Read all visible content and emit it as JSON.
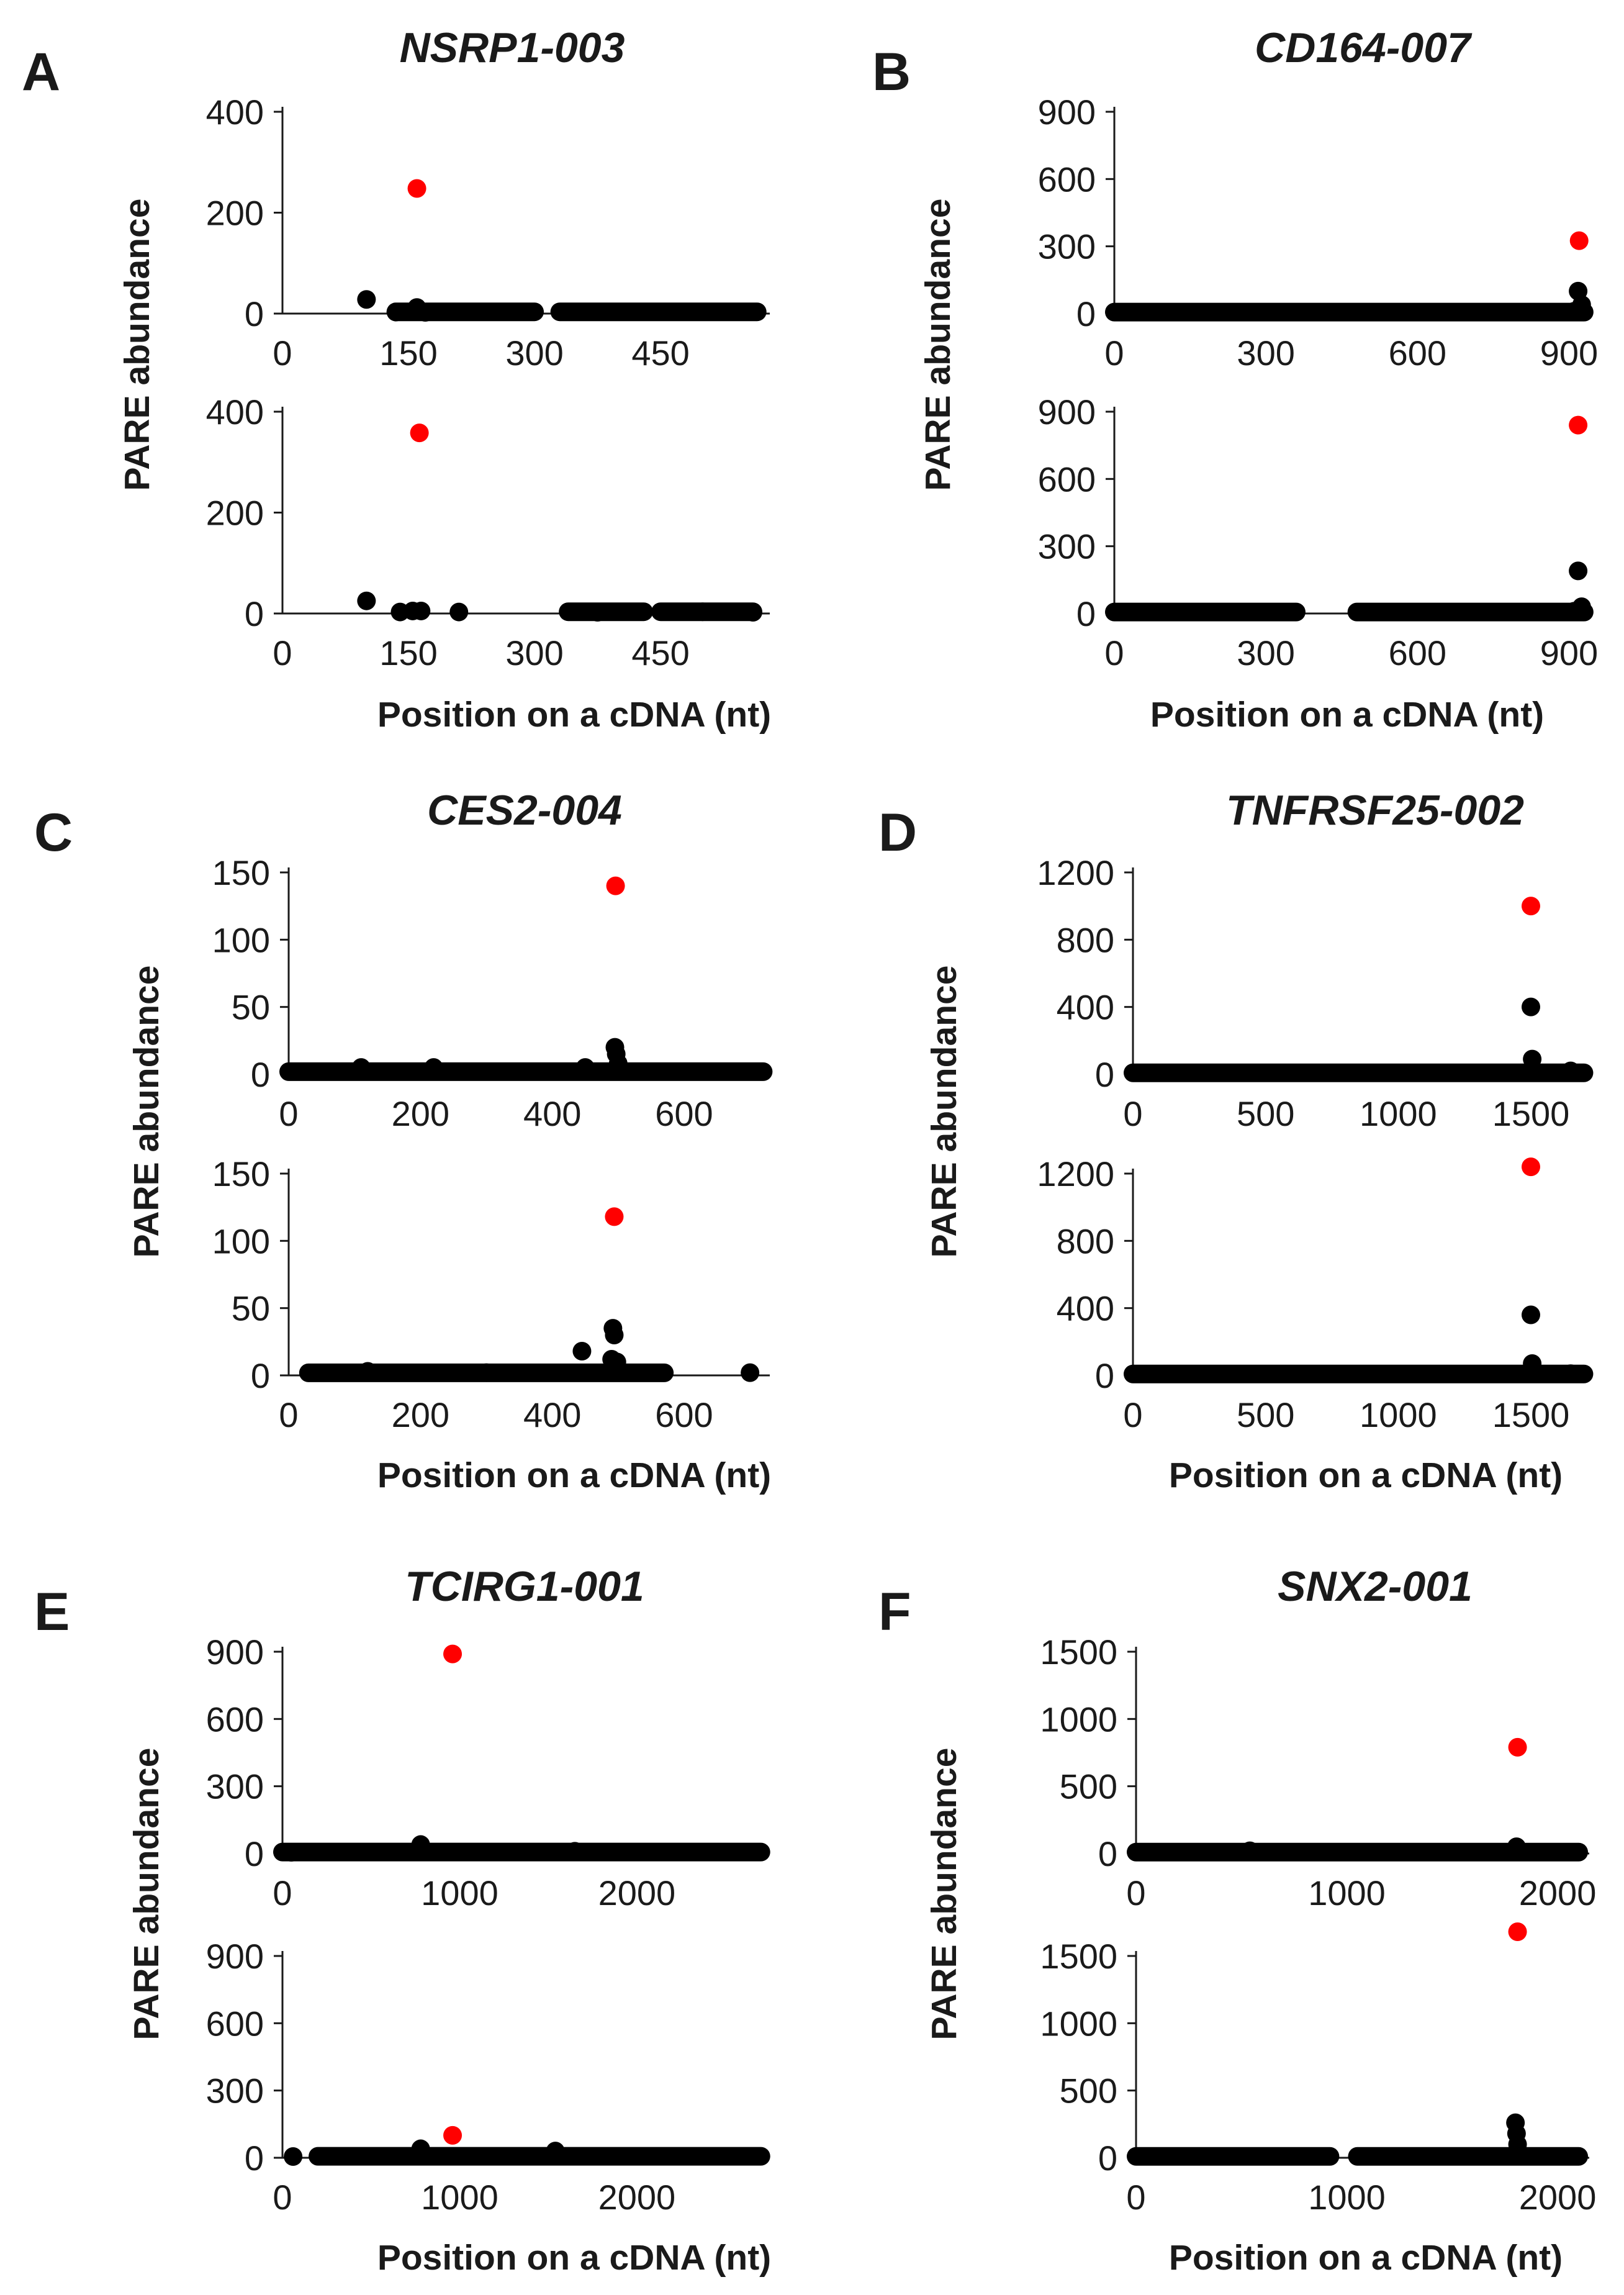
{
  "figure": {
    "ylabel": "PARE abundance",
    "xlabel": "Position on a cDNA (nt)"
  },
  "colors": {
    "point": "#000000",
    "highlight": "#ff0000",
    "axis": "#1a1a1a",
    "text": "#1a1a1a"
  },
  "chart_data": [
    {
      "panel": "A",
      "title": "NSRP1-003",
      "type": "scatter",
      "xlabel": "Position on a cDNA (nt)",
      "ylabel": "PARE abundance",
      "xlim": [
        0,
        580
      ],
      "xticks": [
        0,
        150,
        300,
        450
      ],
      "subplots": [
        {
          "ylim": [
            0,
            400
          ],
          "yticks": [
            0,
            200,
            400
          ],
          "highlight": {
            "x": 160,
            "y": 248
          },
          "points": [
            [
              100,
              28
            ],
            [
              135,
              3
            ],
            [
              160,
              12
            ],
            [
              170,
              2
            ]
          ],
          "bands": [
            [
              135,
              300
            ],
            [
              330,
              565
            ]
          ],
          "band_y": 1
        },
        {
          "ylim": [
            0,
            400
          ],
          "yticks": [
            0,
            200,
            400
          ],
          "highlight": {
            "x": 163,
            "y": 358
          },
          "points": [
            [
              100,
              25
            ],
            [
              140,
              3
            ],
            [
              155,
              5
            ],
            [
              165,
              5
            ],
            [
              210,
              3
            ],
            [
              375,
              2
            ],
            [
              560,
              1
            ]
          ],
          "bands": [
            [
              340,
              430
            ],
            [
              450,
              500
            ],
            [
              500,
              560
            ]
          ],
          "band_y": 1
        }
      ]
    },
    {
      "panel": "B",
      "title": "CD164-007",
      "type": "scatter",
      "xlabel": "Position on a cDNA (nt)",
      "ylabel": "PARE abundance",
      "xlim": [
        0,
        940
      ],
      "xticks": [
        0,
        300,
        600,
        900
      ],
      "subplots": [
        {
          "ylim": [
            0,
            900
          ],
          "yticks": [
            0,
            300,
            600,
            900
          ],
          "highlight": {
            "x": 920,
            "y": 325
          },
          "points": [
            [
              918,
              100
            ],
            [
              925,
              40
            ],
            [
              910,
              10
            ]
          ],
          "bands": [
            [
              0,
              930
            ]
          ],
          "band_y": 1
        },
        {
          "ylim": [
            0,
            900
          ],
          "yticks": [
            0,
            300,
            600,
            900
          ],
          "highlight": {
            "x": 918,
            "y": 840
          },
          "points": [
            [
              918,
              190
            ],
            [
              925,
              30
            ],
            [
              910,
              10
            ]
          ],
          "bands": [
            [
              0,
              360
            ],
            [
              480,
              930
            ]
          ],
          "band_y": 1
        }
      ]
    },
    {
      "panel": "C",
      "title": "CES2-004",
      "type": "scatter",
      "xlabel": "Position on a cDNA (nt)",
      "ylabel": "PARE abundance",
      "xlim": [
        0,
        730
      ],
      "xticks": [
        0,
        200,
        400,
        600
      ],
      "subplots": [
        {
          "ylim": [
            0,
            150
          ],
          "yticks": [
            0,
            50,
            100,
            150
          ],
          "highlight": {
            "x": 496,
            "y": 140
          },
          "points": [
            [
              110,
              5
            ],
            [
              220,
              5
            ],
            [
              450,
              5
            ],
            [
              495,
              20
            ],
            [
              497,
              15
            ],
            [
              500,
              8
            ]
          ],
          "bands": [
            [
              0,
              720
            ]
          ],
          "band_y": 1
        },
        {
          "ylim": [
            0,
            150
          ],
          "yticks": [
            0,
            50,
            100,
            150
          ],
          "highlight": {
            "x": 494,
            "y": 118
          },
          "points": [
            [
              445,
              18
            ],
            [
              490,
              12
            ],
            [
              492,
              35
            ],
            [
              494,
              30
            ],
            [
              498,
              10
            ],
            [
              120,
              3
            ],
            [
              300,
              2
            ],
            [
              700,
              2
            ]
          ],
          "bands": [
            [
              30,
              570
            ]
          ],
          "band_y": 1
        }
      ]
    },
    {
      "panel": "D",
      "title": "TNFRSF25-002",
      "type": "scatter",
      "xlabel": "Position on a cDNA (nt)",
      "ylabel": "PARE abundance",
      "xlim": [
        0,
        1720
      ],
      "xticks": [
        0,
        500,
        1000,
        1500
      ],
      "subplots": [
        {
          "ylim": [
            0,
            1200
          ],
          "yticks": [
            0,
            400,
            800,
            1200
          ],
          "highlight": {
            "x": 1500,
            "y": 1000
          },
          "points": [
            [
              1500,
              400
            ],
            [
              1505,
              90
            ],
            [
              1650,
              20
            ]
          ],
          "bands": [
            [
              0,
              1700
            ]
          ],
          "band_y": 1
        },
        {
          "ylim": [
            0,
            1200
          ],
          "yticks": [
            0,
            400,
            800,
            1200
          ],
          "highlight": {
            "x": 1500,
            "y": 1240
          },
          "points": [
            [
              1500,
              360
            ],
            [
              1505,
              70
            ],
            [
              1650,
              10
            ]
          ],
          "bands": [
            [
              0,
              1700
            ]
          ],
          "band_y": 1
        }
      ]
    },
    {
      "panel": "E",
      "title": "TCIRG1-001",
      "type": "scatter",
      "xlabel": "Position on a cDNA (nt)",
      "ylabel": "PARE abundance",
      "xlim": [
        0,
        2750
      ],
      "xticks": [
        0,
        1000,
        2000
      ],
      "subplots": [
        {
          "ylim": [
            0,
            900
          ],
          "yticks": [
            0,
            300,
            600,
            900
          ],
          "highlight": {
            "x": 960,
            "y": 890
          },
          "points": [
            [
              780,
              40
            ],
            [
              1650,
              10
            ],
            [
              50,
              2
            ]
          ],
          "bands": [
            [
              0,
              2700
            ]
          ],
          "band_y": 1
        },
        {
          "ylim": [
            0,
            900
          ],
          "yticks": [
            0,
            300,
            600,
            900
          ],
          "highlight": {
            "x": 960,
            "y": 100
          },
          "points": [
            [
              780,
              40
            ],
            [
              1540,
              30
            ],
            [
              60,
              2
            ]
          ],
          "bands": [
            [
              200,
              2700
            ]
          ],
          "band_y": 1
        }
      ]
    },
    {
      "panel": "F",
      "title": "SNX2-001",
      "type": "scatter",
      "xlabel": "Position on a cDNA (nt)",
      "ylabel": "PARE abundance",
      "xlim": [
        0,
        2150
      ],
      "xticks": [
        0,
        1000,
        2000
      ],
      "subplots": [
        {
          "ylim": [
            0,
            1500
          ],
          "yticks": [
            0,
            500,
            1000,
            1500
          ],
          "highlight": {
            "x": 1810,
            "y": 790
          },
          "points": [
            [
              1805,
              50
            ],
            [
              540,
              20
            ]
          ],
          "bands": [
            [
              0,
              2100
            ]
          ],
          "band_y": 1
        },
        {
          "ylim": [
            0,
            1500
          ],
          "yticks": [
            0,
            500,
            1000,
            1500
          ],
          "highlight": {
            "x": 1810,
            "y": 1680
          },
          "points": [
            [
              1800,
              260
            ],
            [
              1805,
              180
            ],
            [
              1810,
              100
            ],
            [
              1815,
              40
            ]
          ],
          "bands": [
            [
              0,
              920
            ],
            [
              1050,
              2100
            ]
          ],
          "band_y": 1
        }
      ]
    }
  ]
}
